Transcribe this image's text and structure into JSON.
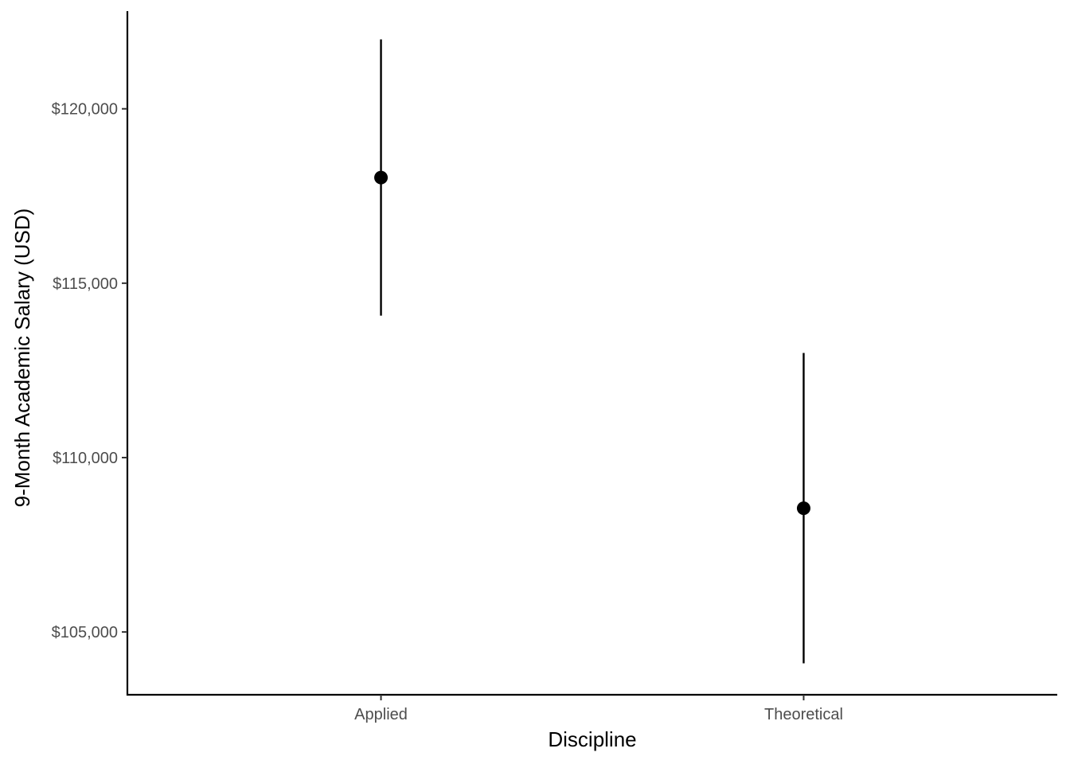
{
  "chart_data": {
    "type": "scatter",
    "subtype": "pointrange",
    "title": "",
    "xlabel": "Discipline",
    "ylabel": "9-Month Academic Salary (USD)",
    "categories": [
      "Applied",
      "Theoretical"
    ],
    "points": [
      {
        "category": "Applied",
        "value": 118029,
        "lower": 114070,
        "upper": 121990
      },
      {
        "category": "Theoretical",
        "value": 108548,
        "lower": 104100,
        "upper": 113000
      }
    ],
    "ylim": [
      103200,
      122800
    ],
    "y_ticks": [
      105000,
      110000,
      115000,
      120000
    ],
    "y_tick_labels": [
      "$105,000",
      "$110,000",
      "$115,000",
      "$120,000"
    ],
    "grid": false,
    "legend": "none",
    "colors": {
      "point": "#000000",
      "axis": "#000000",
      "tick_text": "#4d4d4d"
    }
  }
}
